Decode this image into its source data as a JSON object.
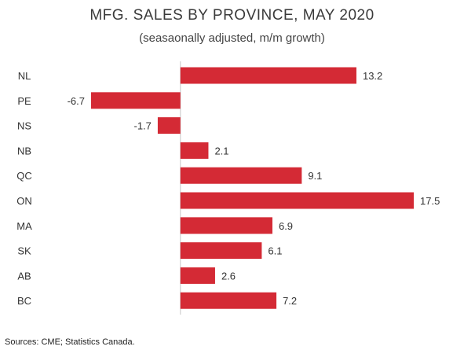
{
  "chart_data": {
    "type": "bar",
    "orientation": "horizontal",
    "title": "MFG. SALES BY PROVINCE, MAY 2020",
    "subtitle": "(seasaonally adjusted, m/m growth)",
    "categories": [
      "NL",
      "PE",
      "NS",
      "NB",
      "QC",
      "ON",
      "MA",
      "SK",
      "AB",
      "BC"
    ],
    "values": [
      13.2,
      -6.7,
      -1.7,
      2.1,
      9.1,
      17.5,
      6.9,
      6.1,
      2.6,
      7.2
    ],
    "value_labels": [
      "13.2",
      "-6.7",
      "-1.7",
      "2.1",
      "9.1",
      "17.5",
      "6.9",
      "6.1",
      "2.6",
      "7.2"
    ],
    "xlim": [
      -6.7,
      17.5
    ],
    "bar_color": "#d42a35",
    "axis_color": "#c8c8c8",
    "grid": false,
    "legend": "none"
  },
  "source": "Sources: CME; Statistics Canada."
}
